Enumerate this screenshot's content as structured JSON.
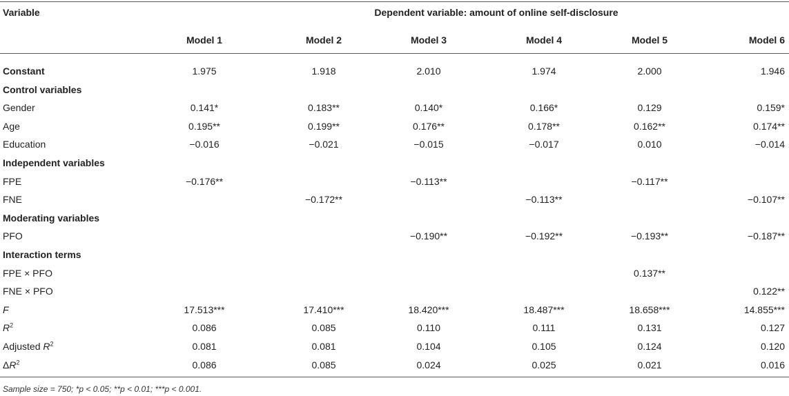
{
  "header": {
    "variable": "Variable",
    "dependent": "Dependent variable: amount of online self-disclosure",
    "models": [
      "Model 1",
      "Model 2",
      "Model 3",
      "Model 4",
      "Model 5",
      "Model 6"
    ]
  },
  "rows": [
    {
      "label": "Constant",
      "bold": true,
      "values": [
        "1.975",
        "1.918",
        "2.010",
        "1.974",
        "2.000",
        "1.946"
      ]
    },
    {
      "label": "Control variables",
      "bold": true,
      "values": [
        "",
        "",
        "",
        "",
        "",
        ""
      ]
    },
    {
      "label": "Gender",
      "values": [
        "0.141*",
        "0.183**",
        "0.140*",
        "0.166*",
        "0.129",
        "0.159*"
      ]
    },
    {
      "label": "Age",
      "values": [
        "0.195**",
        "0.199**",
        "0.176**",
        "0.178**",
        "0.162**",
        "0.174**"
      ]
    },
    {
      "label": "Education",
      "values": [
        "−0.016",
        "−0.021",
        "−0.015",
        "−0.017",
        "0.010",
        "−0.014"
      ]
    },
    {
      "label": "Independent variables",
      "bold": true,
      "values": [
        "",
        "",
        "",
        "",
        "",
        ""
      ]
    },
    {
      "label": "FPE",
      "values": [
        "−0.176**",
        "",
        "−0.113**",
        "",
        "−0.117**",
        ""
      ]
    },
    {
      "label": "FNE",
      "values": [
        "",
        "−0.172**",
        "",
        "−0.113**",
        "",
        "−0.107**"
      ]
    },
    {
      "label": "Moderating variables",
      "bold": true,
      "values": [
        "",
        "",
        "",
        "",
        "",
        ""
      ]
    },
    {
      "label": "PFO",
      "values": [
        "",
        "",
        "−0.190**",
        "−0.192**",
        "−0.193**",
        "−0.187**"
      ]
    },
    {
      "label": "Interaction terms",
      "bold": true,
      "values": [
        "",
        "",
        "",
        "",
        "",
        ""
      ]
    },
    {
      "label": "FPE × PFO",
      "values": [
        "",
        "",
        "",
        "",
        "0.137**",
        ""
      ]
    },
    {
      "label": "FNE × PFO",
      "values": [
        "",
        "",
        "",
        "",
        "",
        "0.122**"
      ]
    },
    {
      "label": "F",
      "italic": true,
      "values": [
        "17.513***",
        "17.410***",
        "18.420***",
        "18.487***",
        "18.658***",
        "14.855***"
      ]
    },
    {
      "label": "R",
      "sup": "2",
      "italic_base": true,
      "values": [
        "0.086",
        "0.085",
        "0.110",
        "0.111",
        "0.131",
        "0.127"
      ]
    },
    {
      "label_prefix": "Adjusted ",
      "label": "R",
      "sup": "2",
      "italic_base": true,
      "values": [
        "0.081",
        "0.081",
        "0.104",
        "0.105",
        "0.124",
        "0.120"
      ]
    },
    {
      "label_prefix": "Δ",
      "label": "R",
      "sup": "2",
      "italic_base": true,
      "values": [
        "0.086",
        "0.085",
        "0.024",
        "0.025",
        "0.021",
        "0.016"
      ]
    }
  ],
  "footnote": "Sample size = 750; *p < 0.05; **p < 0.01; ***p < 0.001."
}
